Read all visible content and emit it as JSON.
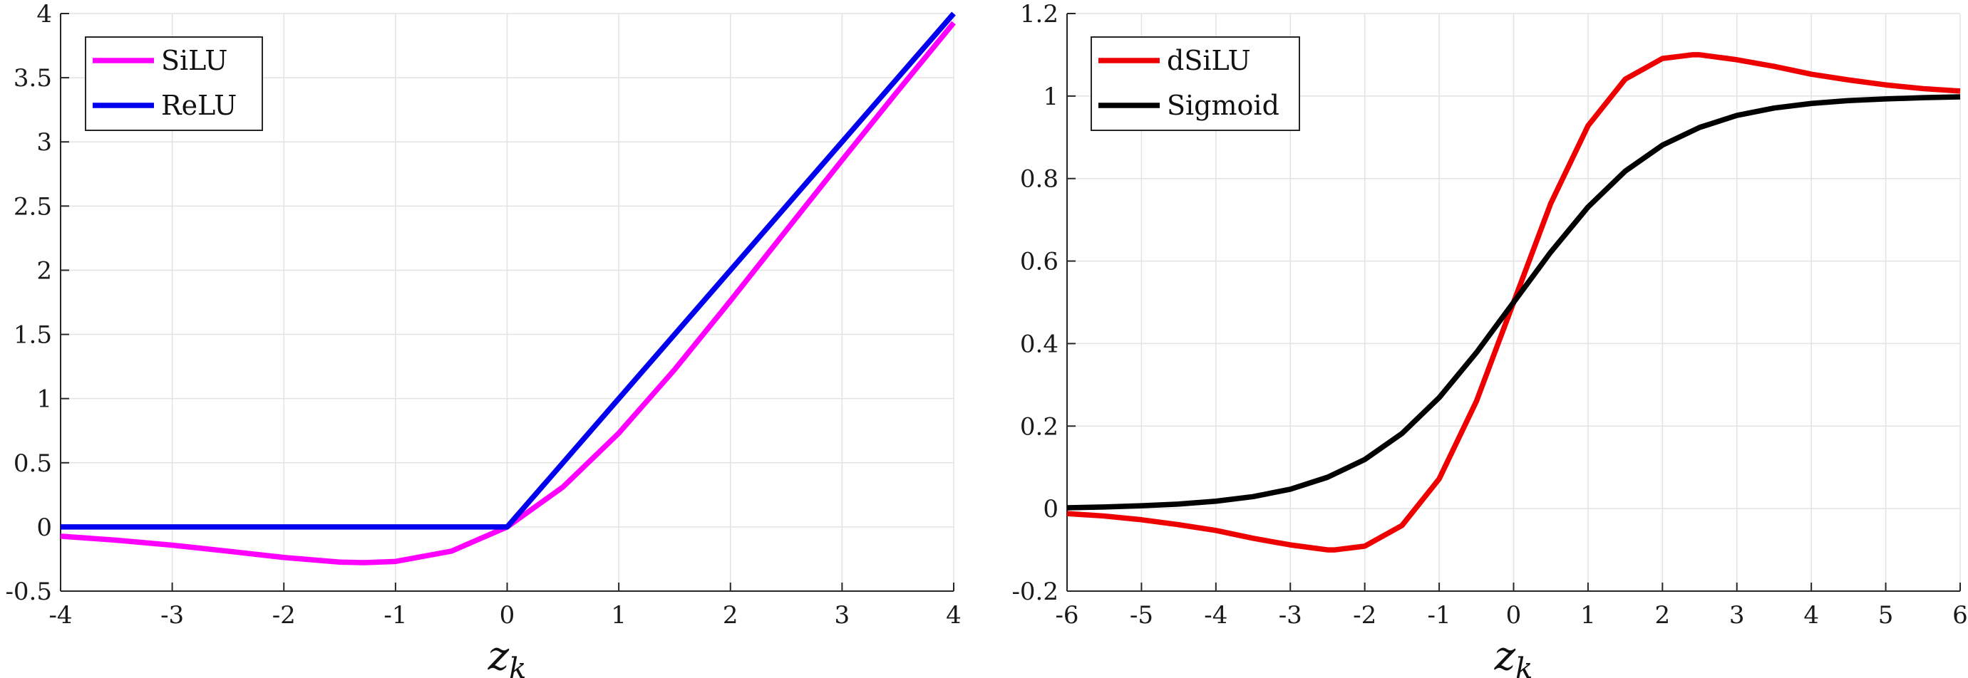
{
  "chart_data": [
    {
      "type": "line",
      "title": "",
      "xlabel": "z_k",
      "ylabel": "",
      "xlim": [
        -4,
        4
      ],
      "ylim": [
        -0.5,
        4
      ],
      "xticks": [
        -4,
        -3,
        -2,
        -1,
        0,
        1,
        2,
        3,
        4
      ],
      "xtick_labels": [
        "-4",
        "-3",
        "-2",
        "-1",
        "0",
        "1",
        "2",
        "3",
        "4"
      ],
      "yticks": [
        -0.5,
        0,
        0.5,
        1,
        1.5,
        2,
        2.5,
        3,
        3.5,
        4
      ],
      "ytick_labels": [
        "-0.5",
        "0",
        "0.5",
        "1",
        "1.5",
        "2",
        "2.5",
        "3",
        "3.5",
        "4"
      ],
      "grid": true,
      "legend_position": "top-left",
      "series": [
        {
          "name": "SiLU",
          "color": "#ff00ff",
          "x": [
            -4,
            -3.5,
            -3,
            -2.5,
            -2,
            -1.5,
            -1.278,
            -1,
            -0.5,
            0,
            0.5,
            1,
            1.5,
            2,
            2.5,
            3,
            3.5,
            4
          ],
          "y": [
            -0.072,
            -0.103,
            -0.142,
            -0.189,
            -0.238,
            -0.274,
            -0.278,
            -0.269,
            -0.189,
            0,
            0.311,
            0.731,
            1.226,
            1.762,
            2.311,
            2.858,
            3.397,
            3.928
          ]
        },
        {
          "name": "ReLU",
          "color": "#0000ee",
          "x": [
            -4,
            0,
            4
          ],
          "y": [
            0,
            0,
            4
          ]
        }
      ]
    },
    {
      "type": "line",
      "title": "",
      "xlabel": "z_k",
      "ylabel": "",
      "xlim": [
        -6,
        6
      ],
      "ylim": [
        -0.2,
        1.2
      ],
      "xticks": [
        -6,
        -5,
        -4,
        -3,
        -2,
        -1,
        0,
        1,
        2,
        3,
        4,
        5,
        6
      ],
      "xtick_labels": [
        "-6",
        "-5",
        "-4",
        "-3",
        "-2",
        "-1",
        "0",
        "1",
        "2",
        "3",
        "4",
        "5",
        "6"
      ],
      "yticks": [
        -0.2,
        0,
        0.2,
        0.4,
        0.6,
        0.8,
        1,
        1.2
      ],
      "ytick_labels": [
        "-0.2",
        "0",
        "0.2",
        "0.4",
        "0.6",
        "0.8",
        "1",
        "1.2"
      ],
      "grid": true,
      "legend_position": "top-left",
      "series": [
        {
          "name": "dSiLU",
          "color": "#ee0000",
          "x": [
            -6,
            -5.5,
            -5,
            -4.5,
            -4,
            -3.5,
            -3,
            -2.5,
            -2.4,
            -2,
            -1.5,
            -1,
            -0.5,
            0,
            0.5,
            1,
            1.5,
            2,
            2.4,
            2.5,
            3,
            3.5,
            4,
            4.5,
            5,
            5.5,
            6
          ],
          "y": [
            -0.012,
            -0.018,
            -0.027,
            -0.039,
            -0.053,
            -0.072,
            -0.088,
            -0.1,
            -0.1,
            -0.091,
            -0.041,
            0.072,
            0.26,
            0.5,
            0.74,
            0.928,
            1.041,
            1.091,
            1.1,
            1.1,
            1.088,
            1.072,
            1.053,
            1.039,
            1.027,
            1.018,
            1.012
          ]
        },
        {
          "name": "Sigmoid",
          "color": "#000000",
          "x": [
            -6,
            -5.5,
            -5,
            -4.5,
            -4,
            -3.5,
            -3,
            -2.5,
            -2,
            -1.5,
            -1,
            -0.5,
            0,
            0.5,
            1,
            1.5,
            2,
            2.5,
            3,
            3.5,
            4,
            4.5,
            5,
            5.5,
            6
          ],
          "y": [
            0.002,
            0.004,
            0.007,
            0.011,
            0.018,
            0.029,
            0.047,
            0.076,
            0.119,
            0.182,
            0.269,
            0.378,
            0.5,
            0.622,
            0.731,
            0.818,
            0.881,
            0.924,
            0.953,
            0.971,
            0.982,
            0.989,
            0.993,
            0.996,
            0.998
          ]
        }
      ]
    }
  ]
}
